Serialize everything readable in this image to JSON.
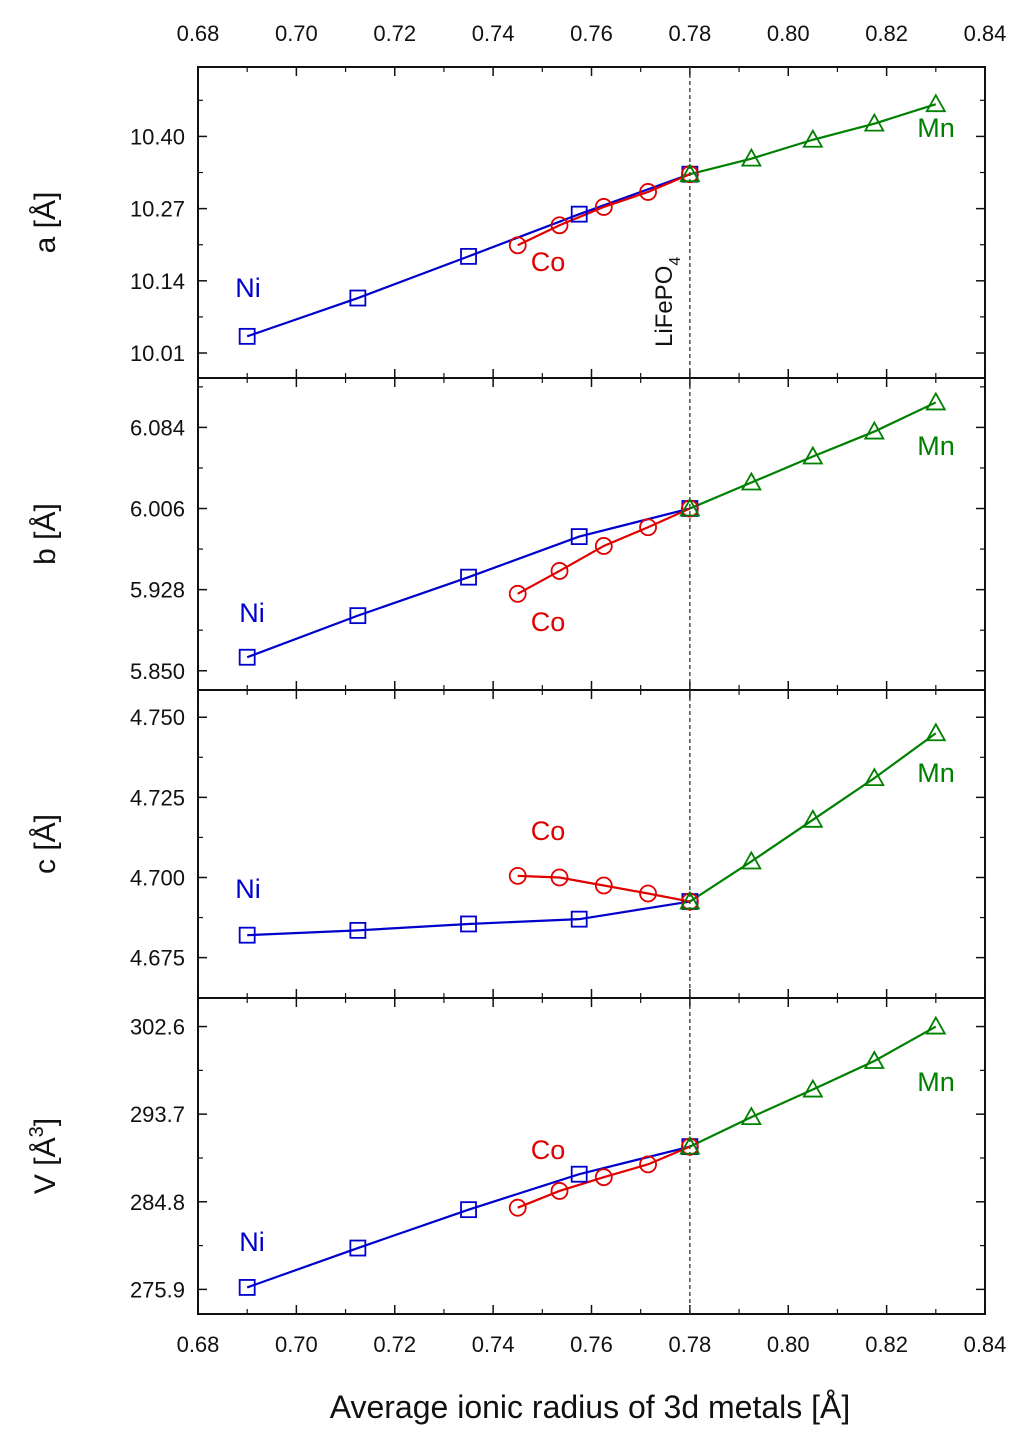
{
  "colors": {
    "Ni": "#0000cc",
    "Co": "#e00000",
    "Mn": "#008000",
    "axis": "#111111",
    "ref": "#333333"
  },
  "chart_data": {
    "type": "line",
    "xlabel": "Average ionic radius of 3d metals [Å]",
    "x_tick_labels": [
      "0.68",
      "0.70",
      "0.72",
      "0.74",
      "0.76",
      "0.78",
      "0.80",
      "0.82",
      "0.84"
    ],
    "x_ticks": [
      0.68,
      0.7,
      0.72,
      0.74,
      0.76,
      0.78,
      0.8,
      0.82,
      0.84
    ],
    "xlim": [
      0.68,
      0.84
    ],
    "reference": {
      "x": 0.78,
      "label": "LiFePO",
      "sub": "4"
    },
    "series_styles": {
      "Ni": {
        "marker": "square",
        "color": "#0000cc"
      },
      "Co": {
        "marker": "circle",
        "color": "#e00000"
      },
      "Mn": {
        "marker": "triangle",
        "color": "#008000"
      }
    },
    "panels": [
      {
        "id": "a",
        "ylabel": "a [Å]",
        "ylim": [
          9.965,
          10.525
        ],
        "yticks": [
          10.01,
          10.14,
          10.27,
          10.4
        ],
        "ytick_labels": [
          "10.01",
          "10.14",
          "10.27",
          "10.40"
        ],
        "labels": {
          "Ni": "Ni",
          "Co": "Co",
          "Mn": "Mn"
        },
        "series": [
          {
            "name": "Ni",
            "x": [
              0.69,
              0.7125,
              0.735,
              0.7575,
              0.78
            ],
            "y": [
              10.04,
              10.109,
              10.184,
              10.26,
              10.332
            ]
          },
          {
            "name": "Co",
            "x": [
              0.745,
              0.7535,
              0.7625,
              0.7715,
              0.78
            ],
            "y": [
              10.204,
              10.24,
              10.273,
              10.3,
              10.332
            ]
          },
          {
            "name": "Mn",
            "x": [
              0.78,
              0.7925,
              0.805,
              0.8175,
              0.83
            ],
            "y": [
              10.332,
              10.36,
              10.394,
              10.423,
              10.458
            ]
          }
        ]
      },
      {
        "id": "b",
        "ylabel": "b [Å]",
        "ylim": [
          5.8315,
          6.1315
        ],
        "yticks": [
          5.85,
          5.928,
          6.006,
          6.084
        ],
        "ytick_labels": [
          "5.850",
          "5.928",
          "6.006",
          "6.084"
        ],
        "labels": {
          "Ni": "Ni",
          "Co": "Co",
          "Mn": "Mn"
        },
        "series": [
          {
            "name": "Ni",
            "x": [
              0.69,
              0.7125,
              0.735,
              0.7575,
              0.78
            ],
            "y": [
              5.863,
              5.903,
              5.94,
              5.979,
              6.006
            ]
          },
          {
            "name": "Co",
            "x": [
              0.745,
              0.7535,
              0.7625,
              0.7715,
              0.78
            ],
            "y": [
              5.924,
              5.946,
              5.97,
              5.988,
              6.006
            ]
          },
          {
            "name": "Mn",
            "x": [
              0.78,
              0.7925,
              0.805,
              0.8175,
              0.83
            ],
            "y": [
              6.006,
              6.031,
              6.056,
              6.08,
              6.108
            ]
          }
        ]
      },
      {
        "id": "c",
        "ylabel": "c [Å]",
        "ylim": [
          4.6624,
          4.7585
        ],
        "yticks": [
          4.675,
          4.7,
          4.725,
          4.75
        ],
        "ytick_labels": [
          "4.675",
          "4.700",
          "4.725",
          "4.750"
        ],
        "labels": {
          "Ni": "Ni",
          "Co": "Co",
          "Mn": "Mn"
        },
        "series": [
          {
            "name": "Ni",
            "x": [
              0.69,
              0.7125,
              0.735,
              0.7575,
              0.78
            ],
            "y": [
              4.682,
              4.6835,
              4.6855,
              4.687,
              4.6925
            ]
          },
          {
            "name": "Co",
            "x": [
              0.745,
              0.7535,
              0.7625,
              0.7715,
              0.78
            ],
            "y": [
              4.7005,
              4.7,
              4.6975,
              4.695,
              4.6925
            ]
          },
          {
            "name": "Mn",
            "x": [
              0.78,
              0.7925,
              0.805,
              0.8175,
              0.83
            ],
            "y": [
              4.6925,
              4.705,
              4.718,
              4.731,
              4.745
            ]
          }
        ]
      },
      {
        "id": "V",
        "ylabel": "V [Å",
        "ylabel_sup": "3",
        "ylabel_end": "]",
        "ylim": [
          273.4,
          305.5
        ],
        "yticks": [
          275.9,
          284.8,
          293.7,
          302.6
        ],
        "ytick_labels": [
          "275.9",
          "284.8",
          "293.7",
          "302.6"
        ],
        "labels": {
          "Ni": "Ni",
          "Co": "Co",
          "Mn": "Mn"
        },
        "series": [
          {
            "name": "Ni",
            "x": [
              0.69,
              0.7125,
              0.735,
              0.7575,
              0.78
            ],
            "y": [
              276.1,
              280.1,
              284.0,
              287.6,
              290.4
            ]
          },
          {
            "name": "Co",
            "x": [
              0.745,
              0.7535,
              0.7625,
              0.7715,
              0.78
            ],
            "y": [
              284.2,
              285.9,
              287.3,
              288.6,
              290.4
            ]
          },
          {
            "name": "Mn",
            "x": [
              0.78,
              0.7925,
              0.805,
              0.8175,
              0.83
            ],
            "y": [
              290.4,
              293.4,
              296.2,
              299.1,
              302.6
            ]
          }
        ]
      }
    ]
  }
}
